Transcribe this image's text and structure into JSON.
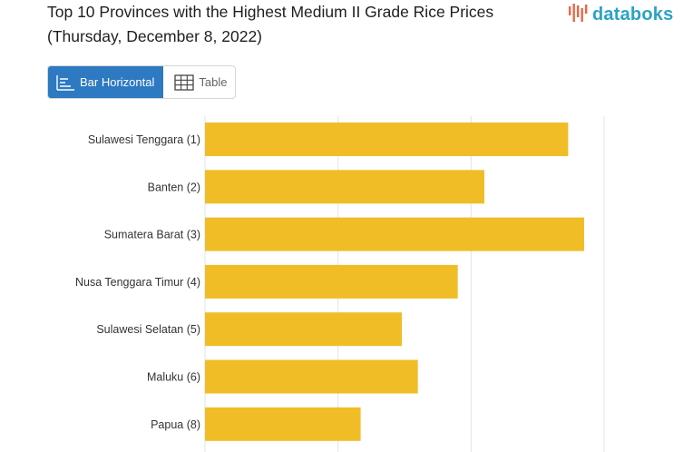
{
  "header": {
    "title": "Top 10 Provinces with the Highest Medium II Grade Rice Prices (Thursday, December 8, 2022)",
    "brand": "databoks",
    "brand_color": "#2aa3c4",
    "brand_icon": "bar-signal-icon"
  },
  "view_toggle": {
    "options": [
      {
        "label": "Bar Horizontal",
        "icon": "bar-horizontal-icon",
        "active": true
      },
      {
        "label": "Table",
        "icon": "table-grid-icon",
        "active": false
      }
    ],
    "active_color": "#2d79c2"
  },
  "chart_data": {
    "type": "bar",
    "orientation": "horizontal",
    "categories": [
      "Sulawesi Tenggara (1)",
      "Banten (2)",
      "Sumatera Barat (3)",
      "Nusa Tenggara Timur (4)",
      "Sulawesi Selatan (5)",
      "Maluku (6)",
      "Papua (8)"
    ],
    "values": [
      11730,
      11100,
      11850,
      10900,
      10480,
      10600,
      10170
    ],
    "xlim": [
      9000,
      12000
    ],
    "grid": true,
    "bar_color": "#f0bd27",
    "title": "Top 10 Provinces with the Highest Medium II Grade Rice Prices (Thursday, December 8, 2022)"
  }
}
